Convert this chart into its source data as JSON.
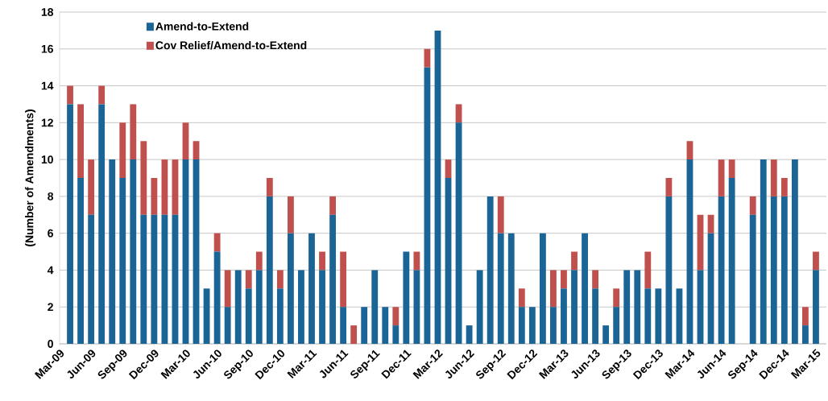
{
  "chart_data": {
    "type": "bar",
    "stacked": true,
    "ylabel": "(Number of Amendments)",
    "x": [
      "2009-04",
      "2009-05",
      "2009-06",
      "2009-07",
      "2009-08",
      "2009-09",
      "2009-10",
      "2009-11",
      "2009-12",
      "2010-01",
      "2010-02",
      "2010-03",
      "2010-04",
      "2010-05",
      "2010-06",
      "2010-07",
      "2010-08",
      "2010-09",
      "2010-10",
      "2010-11",
      "2010-12",
      "2011-01",
      "2011-02",
      "2011-03",
      "2011-04",
      "2011-05",
      "2011-06",
      "2011-07",
      "2011-08",
      "2011-09",
      "2011-10",
      "2011-11",
      "2011-12",
      "2012-01",
      "2012-02",
      "2012-03",
      "2012-04",
      "2012-05",
      "2012-06",
      "2012-07",
      "2012-08",
      "2012-09",
      "2012-10",
      "2012-11",
      "2012-12",
      "2013-01",
      "2013-02",
      "2013-03",
      "2013-04",
      "2013-05",
      "2013-06",
      "2013-07",
      "2013-08",
      "2013-09",
      "2013-10",
      "2013-11",
      "2013-12",
      "2014-01",
      "2014-02",
      "2014-03",
      "2014-04",
      "2014-05",
      "2014-06",
      "2014-07",
      "2014-08",
      "2014-09",
      "2014-10",
      "2014-11",
      "2014-12",
      "2015-01",
      "2015-02",
      "2015-03"
    ],
    "series": [
      {
        "name": "Amend-to-Extend",
        "color": "#1a6496",
        "values": [
          13,
          9,
          7,
          13,
          10,
          9,
          10,
          7,
          7,
          7,
          7,
          10,
          10,
          3,
          5,
          2,
          4,
          3,
          4,
          8,
          3,
          6,
          4,
          6,
          4,
          7,
          2,
          0,
          2,
          4,
          2,
          1,
          5,
          4,
          15,
          17,
          9,
          12,
          1,
          4,
          8,
          6,
          6,
          2,
          2,
          6,
          2,
          3,
          4,
          6,
          3,
          1,
          2,
          4,
          4,
          3,
          3,
          8,
          3,
          10,
          4,
          6,
          8,
          9,
          0,
          7,
          10,
          8,
          8,
          10,
          1,
          4
        ]
      },
      {
        "name": "Cov Relief/Amend-to-Extend",
        "color": "#c0504d",
        "values": [
          1,
          4,
          3,
          1,
          0,
          3,
          3,
          4,
          2,
          3,
          3,
          2,
          1,
          0,
          1,
          2,
          0,
          1,
          1,
          1,
          1,
          2,
          0,
          0,
          1,
          1,
          3,
          1,
          0,
          0,
          0,
          1,
          0,
          1,
          1,
          0,
          1,
          1,
          0,
          0,
          0,
          2,
          0,
          1,
          0,
          0,
          2,
          1,
          1,
          0,
          1,
          0,
          1,
          0,
          0,
          2,
          0,
          1,
          0,
          1,
          3,
          1,
          2,
          1,
          0,
          1,
          0,
          2,
          1,
          0,
          1,
          1
        ]
      }
    ],
    "xlim": [
      "2009-03",
      "2015-04"
    ],
    "xticks": [
      {
        "value": "2009-03",
        "label": "Mar-09"
      },
      {
        "value": "2009-06",
        "label": "Jun-09"
      },
      {
        "value": "2009-09",
        "label": "Sep-09"
      },
      {
        "value": "2009-12",
        "label": "Dec-09"
      },
      {
        "value": "2010-03",
        "label": "Mar-10"
      },
      {
        "value": "2010-06",
        "label": "Jun-10"
      },
      {
        "value": "2010-09",
        "label": "Sep-10"
      },
      {
        "value": "2010-12",
        "label": "Dec-10"
      },
      {
        "value": "2011-03",
        "label": "Mar-11"
      },
      {
        "value": "2011-06",
        "label": "Jun-11"
      },
      {
        "value": "2011-09",
        "label": "Sep-11"
      },
      {
        "value": "2011-12",
        "label": "Dec-11"
      },
      {
        "value": "2012-03",
        "label": "Mar-12"
      },
      {
        "value": "2012-06",
        "label": "Jun-12"
      },
      {
        "value": "2012-09",
        "label": "Sep-12"
      },
      {
        "value": "2012-12",
        "label": "Dec-12"
      },
      {
        "value": "2013-03",
        "label": "Mar-13"
      },
      {
        "value": "2013-06",
        "label": "Jun-13"
      },
      {
        "value": "2013-09",
        "label": "Sep-13"
      },
      {
        "value": "2013-12",
        "label": "Dec-13"
      },
      {
        "value": "2014-03",
        "label": "Mar-14"
      },
      {
        "value": "2014-06",
        "label": "Jun-14"
      },
      {
        "value": "2014-09",
        "label": "Sep-14"
      },
      {
        "value": "2014-12",
        "label": "Dec-14"
      },
      {
        "value": "2015-03",
        "label": "Mar-15"
      }
    ],
    "ylim": [
      0,
      18
    ],
    "yticks": [
      0,
      2,
      4,
      6,
      8,
      10,
      12,
      14,
      16,
      18
    ],
    "grid": "y",
    "legend": "top left"
  }
}
